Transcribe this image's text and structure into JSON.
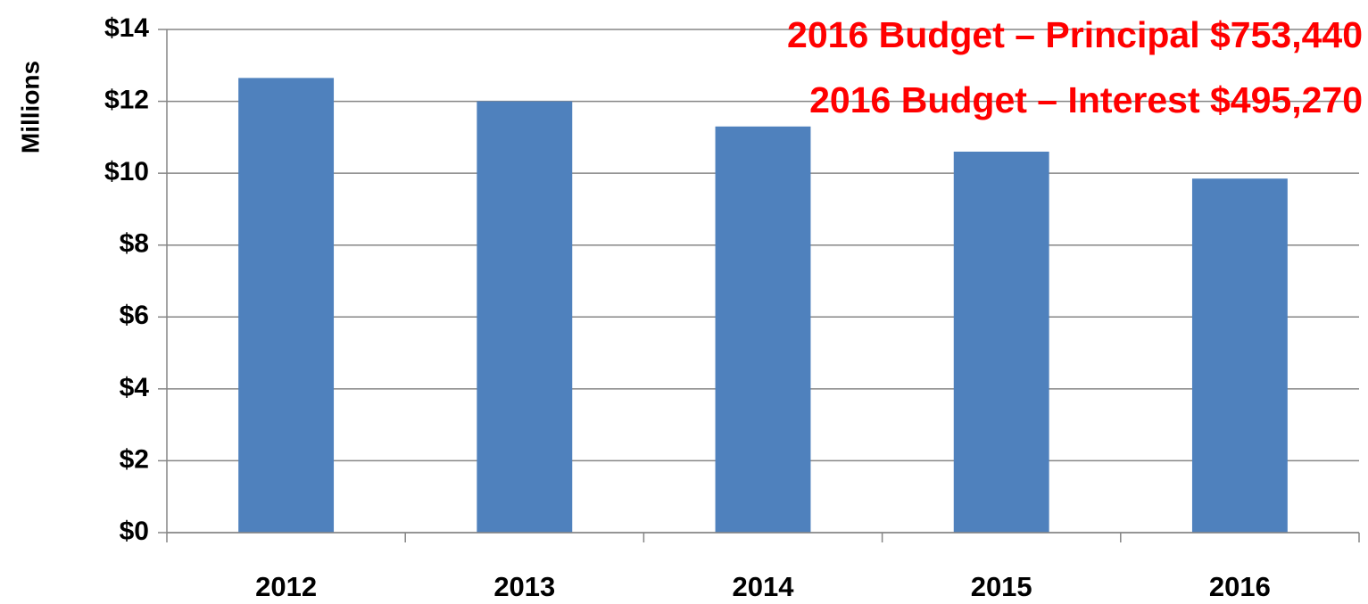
{
  "chart_data": {
    "type": "bar",
    "y_label": "Millions",
    "annotations": [
      "2016 Budget – Principal $753,440",
      "2016 Budget – Interest $495,270"
    ],
    "categories": [
      "2012",
      "2013",
      "2014",
      "2015",
      "2016"
    ],
    "values": [
      12.65,
      12.0,
      11.3,
      10.6,
      9.85
    ],
    "color": "#4f81bd",
    "annotation_color": "#ff0000",
    "ylim": [
      0,
      14
    ],
    "yticks": [
      {
        "value": 0,
        "label": "$0"
      },
      {
        "value": 2,
        "label": "$2"
      },
      {
        "value": 4,
        "label": "$4"
      },
      {
        "value": 6,
        "label": "$6"
      },
      {
        "value": 8,
        "label": "$8"
      },
      {
        "value": 10,
        "label": "$10"
      },
      {
        "value": 12,
        "label": "$12"
      },
      {
        "value": 14,
        "label": "$14"
      }
    ],
    "grid": true
  }
}
